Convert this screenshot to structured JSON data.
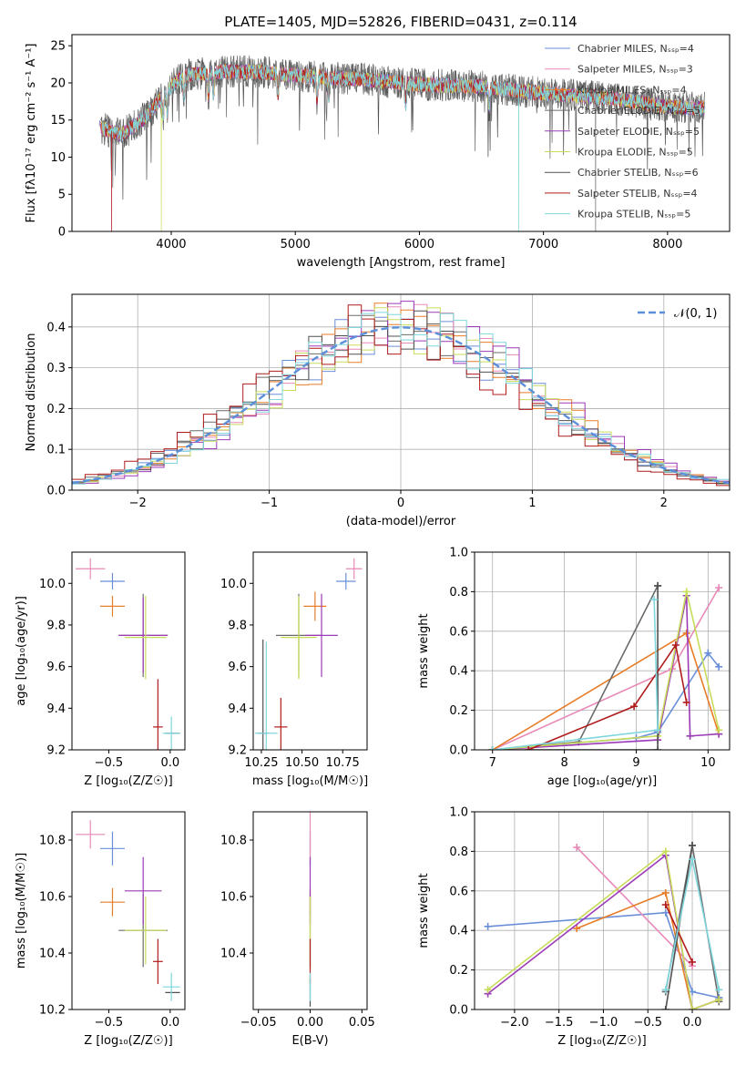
{
  "colors": [
    "#6a8fd8",
    "#e88ab8",
    "#e87d28",
    "#6b6b6b",
    "#9c3bb8",
    "#c8dc5a",
    "#505050",
    "#b01c1c",
    "#7fd6dc"
  ],
  "chart_data": [
    {
      "id": "spectrum",
      "type": "line",
      "title": "PLATE=1405, MJD=52826, FIBERID=0431, z=0.114",
      "xlabel": "wavelength [Angstrom, rest frame]",
      "ylabel": "Flux [fλ10⁻¹⁷ erg cm⁻² s⁻¹ A⁻¹]",
      "xlim": [
        3200,
        8500
      ],
      "ylim": [
        0,
        26.5
      ],
      "xticks": [
        4000,
        5000,
        6000,
        7000,
        8000
      ],
      "yticks": [
        0,
        5,
        10,
        15,
        20,
        25
      ],
      "legend_position": "top-right",
      "continuum": {
        "x": [
          3420,
          3600,
          3800,
          4000,
          4100,
          4400,
          4700,
          5000,
          5500,
          6000,
          6500,
          7000,
          7500,
          8000,
          8300
        ],
        "y": [
          14,
          13,
          15.5,
          19.5,
          21,
          21.5,
          21.5,
          21,
          20.5,
          19.8,
          19.5,
          18.6,
          18,
          16.8,
          16.6
        ]
      },
      "series": [
        {
          "name": "Chabrier MILES, Nₛₛₚ=4"
        },
        {
          "name": "Salpeter MILES, Nₛₛₚ=3"
        },
        {
          "name": "Kroupa MILES, Nₛₛₚ=4"
        },
        {
          "name": "Chabrier ELODIE, Nₛₛₚ=5"
        },
        {
          "name": "Salpeter ELODIE, Nₛₛₚ=5"
        },
        {
          "name": "Kroupa ELODIE, Nₛₛₚ=5"
        },
        {
          "name": "Chabrier STELIB, Nₛₛₚ=6"
        },
        {
          "name": "Salpeter STELIB, Nₛₛₚ=4"
        },
        {
          "name": "Kroupa STELIB, Nₛₛₚ=5"
        }
      ]
    },
    {
      "id": "residuals",
      "type": "line",
      "xlabel": "(data-model)/error",
      "ylabel": "Normed distribution",
      "xlim": [
        -2.5,
        2.5
      ],
      "ylim": [
        0,
        0.48
      ],
      "xticks": [
        -2,
        -1,
        0,
        1,
        2
      ],
      "yticks": [
        0.0,
        0.1,
        0.2,
        0.3,
        0.4
      ],
      "grid": true,
      "legend_position": "top-right",
      "gaussian": {
        "name": "𝒩(0, 1)",
        "mean": 0,
        "sigma": 1
      }
    },
    {
      "id": "age-vs-z",
      "type": "scatter",
      "xlabel": "Z [log₁₀(Z/Z☉)]",
      "ylabel": "age  [log₁₀(age/yr)]",
      "xlim": [
        -0.8,
        0.12
      ],
      "ylim": [
        9.2,
        10.15
      ],
      "xticks": [
        -0.5,
        0.0
      ],
      "yticks": [
        9.2,
        9.4,
        9.6,
        9.8,
        10.0
      ],
      "points": [
        {
          "x": -0.47,
          "y": 10.01,
          "ex": 0.1,
          "ey": 0.04
        },
        {
          "x": -0.65,
          "y": 10.07,
          "ex": 0.12,
          "ey": 0.05
        },
        {
          "x": -0.47,
          "y": 9.89,
          "ex": 0.1,
          "ey": 0.05
        },
        {
          "x": -0.22,
          "y": 9.75,
          "ex": 0.2,
          "ey": 0.2
        },
        {
          "x": -0.22,
          "y": 9.75,
          "ex": 0.2,
          "ey": 0.18
        },
        {
          "x": -0.2,
          "y": 9.74,
          "ex": 0.17,
          "ey": 0.2
        },
        {
          "x": 0.02,
          "y": 9.28,
          "ex": 0.06,
          "ey": 0.0
        },
        {
          "x": -0.1,
          "y": 9.31,
          "ex": 0.04,
          "ey": 0.23
        },
        {
          "x": 0.01,
          "y": 9.28,
          "ex": 0.07,
          "ey": 0.08
        }
      ]
    },
    {
      "id": "age-vs-mass",
      "type": "scatter",
      "xlabel": "mass [log₁₀(M/M☉)]",
      "ylabel": "",
      "xlim": [
        10.2,
        10.9
      ],
      "ylim": [
        9.2,
        10.15
      ],
      "xticks": [
        10.25,
        10.5,
        10.75
      ],
      "yticks": [
        9.2,
        9.4,
        9.6,
        9.8,
        10.0
      ],
      "points": [
        {
          "x": 10.77,
          "y": 10.01,
          "ex": 0.06,
          "ey": 0.04
        },
        {
          "x": 10.82,
          "y": 10.07,
          "ex": 0.05,
          "ey": 0.05
        },
        {
          "x": 10.58,
          "y": 9.89,
          "ex": 0.07,
          "ey": 0.07
        },
        {
          "x": 10.48,
          "y": 9.75,
          "ex": 0.14,
          "ey": 0.2
        },
        {
          "x": 10.62,
          "y": 9.75,
          "ex": 0.1,
          "ey": 0.2
        },
        {
          "x": 10.48,
          "y": 9.74,
          "ex": 0.11,
          "ey": 0.2
        },
        {
          "x": 10.26,
          "y": 9.28,
          "ex": 0.03,
          "ey": 0.45
        },
        {
          "x": 10.37,
          "y": 9.31,
          "ex": 0.04,
          "ey": 0.14
        },
        {
          "x": 10.28,
          "y": 9.28,
          "ex": 0.07,
          "ey": 0.44
        }
      ]
    },
    {
      "id": "weight-vs-age",
      "type": "line",
      "xlabel": "age  [log₁₀(age/yr)]",
      "ylabel": "mass weight",
      "xlim": [
        6.75,
        10.3
      ],
      "ylim": [
        0,
        1.0
      ],
      "xticks": [
        7,
        8,
        9,
        10
      ],
      "yticks": [
        0.0,
        0.2,
        0.4,
        0.6,
        0.8,
        1.0
      ],
      "grid": true,
      "series": [
        {
          "x": [
            7.0,
            9.0,
            9.3,
            10.0,
            10.15
          ],
          "y": [
            0.0,
            0.06,
            0.09,
            0.49,
            0.42
          ]
        },
        {
          "x": [
            7.0,
            9.5,
            10.15
          ],
          "y": [
            0.0,
            0.41,
            0.82
          ]
        },
        {
          "x": [
            7.0,
            9.7,
            10.15
          ],
          "y": [
            0.0,
            0.59,
            0.08
          ]
        },
        {
          "x": [
            7.0,
            8.2,
            9.3
          ],
          "y": [
            0.0,
            0.04,
            0.83
          ]
        },
        {
          "x": [
            7.0,
            9.3,
            9.7,
            9.75,
            10.15
          ],
          "y": [
            0.0,
            0.05,
            0.78,
            0.07,
            0.08
          ]
        },
        {
          "x": [
            7.0,
            9.3,
            9.7,
            10.15
          ],
          "y": [
            0.0,
            0.07,
            0.8,
            0.1
          ]
        },
        {
          "x": [
            7.0,
            9.3,
            9.3
          ],
          "y": [
            0.0,
            0.0,
            0.83
          ]
        },
        {
          "x": [
            7.5,
            8.97,
            9.55,
            9.7
          ],
          "y": [
            0.0,
            0.22,
            0.53,
            0.24
          ]
        },
        {
          "x": [
            7.0,
            9.3,
            9.25
          ],
          "y": [
            0.0,
            0.1,
            0.76
          ]
        }
      ]
    },
    {
      "id": "mass-vs-z",
      "type": "scatter",
      "xlabel": "Z [log₁₀(Z/Z☉)]",
      "ylabel": "mass [log₁₀(M/M☉)]",
      "xlim": [
        -0.8,
        0.12
      ],
      "ylim": [
        10.2,
        10.9
      ],
      "xticks": [
        -0.5,
        0.0
      ],
      "yticks": [
        10.2,
        10.4,
        10.6,
        10.8
      ],
      "points": [
        {
          "x": -0.47,
          "y": 10.77,
          "ex": 0.1,
          "ey": 0.06
        },
        {
          "x": -0.65,
          "y": 10.82,
          "ex": 0.12,
          "ey": 0.05
        },
        {
          "x": -0.47,
          "y": 10.58,
          "ex": 0.1,
          "ey": 0.05
        },
        {
          "x": -0.22,
          "y": 10.48,
          "ex": 0.2,
          "ey": 0.13
        },
        {
          "x": -0.22,
          "y": 10.62,
          "ex": 0.15,
          "ey": 0.12
        },
        {
          "x": -0.2,
          "y": 10.48,
          "ex": 0.17,
          "ey": 0.12
        },
        {
          "x": 0.02,
          "y": 10.26,
          "ex": 0.06,
          "ey": 0.0
        },
        {
          "x": -0.1,
          "y": 10.37,
          "ex": 0.04,
          "ey": 0.08
        },
        {
          "x": 0.01,
          "y": 10.28,
          "ex": 0.07,
          "ey": 0.05
        }
      ]
    },
    {
      "id": "mass-vs-ebv",
      "type": "scatter",
      "xlabel": "E(B-V)",
      "ylabel": "",
      "xlim": [
        -0.055,
        0.055
      ],
      "ylim": [
        10.2,
        10.9
      ],
      "xticks": [
        -0.05,
        0.0,
        0.05
      ],
      "yticks": [
        10.4,
        10.6,
        10.8
      ],
      "points": [
        {
          "x": 0.0,
          "y": 10.77,
          "ex": 0.0,
          "ey": 0.06
        },
        {
          "x": 0.0,
          "y": 10.82,
          "ex": 0.0,
          "ey": 0.08
        },
        {
          "x": 0.0,
          "y": 10.58,
          "ex": 0.0,
          "ey": 0.05
        },
        {
          "x": 0.0,
          "y": 10.48,
          "ex": 0.0,
          "ey": 0.13
        },
        {
          "x": 0.0,
          "y": 10.62,
          "ex": 0.0,
          "ey": 0.12
        },
        {
          "x": 0.0,
          "y": 10.48,
          "ex": 0.0,
          "ey": 0.12
        },
        {
          "x": 0.0,
          "y": 10.26,
          "ex": 0.0,
          "ey": 0.05
        },
        {
          "x": 0.0,
          "y": 10.37,
          "ex": 0.0,
          "ey": 0.08
        },
        {
          "x": 0.0,
          "y": 10.28,
          "ex": 0.0,
          "ey": 0.05
        }
      ]
    },
    {
      "id": "weight-vs-z",
      "type": "line",
      "xlabel": "Z [log₁₀(Z/Z☉)]",
      "ylabel": "mass weight",
      "xlim": [
        -2.45,
        0.42
      ],
      "ylim": [
        0,
        1.0
      ],
      "xticks": [
        -2.0,
        -1.5,
        -1.0,
        -0.5,
        0.0
      ],
      "yticks": [
        0.0,
        0.2,
        0.4,
        0.6,
        0.8,
        1.0
      ],
      "grid": true,
      "series": [
        {
          "x": [
            -2.3,
            -0.3,
            0.0,
            0.3
          ],
          "y": [
            0.42,
            0.49,
            0.09,
            0.06
          ]
        },
        {
          "x": [
            -1.3,
            0.0
          ],
          "y": [
            0.82,
            0.22
          ]
        },
        {
          "x": [
            -1.3,
            -0.3,
            0.0,
            0.3
          ],
          "y": [
            0.41,
            0.59,
            0.0,
            0.05
          ]
        },
        {
          "x": [
            -0.3,
            0.0,
            0.3
          ],
          "y": [
            0.09,
            0.83,
            0.04
          ]
        },
        {
          "x": [
            -2.3,
            -0.3,
            0.0,
            0.3
          ],
          "y": [
            0.08,
            0.78,
            0.0,
            0.05
          ]
        },
        {
          "x": [
            -2.3,
            -0.3,
            0.0,
            0.3
          ],
          "y": [
            0.1,
            0.8,
            0.0,
            0.05
          ]
        },
        {
          "x": [
            -0.3,
            0.0
          ],
          "y": [
            0.0,
            0.83
          ]
        },
        {
          "x": [
            -0.3,
            0.0
          ],
          "y": [
            0.53,
            0.24
          ]
        },
        {
          "x": [
            -0.3,
            0.0,
            0.3
          ],
          "y": [
            0.1,
            0.76,
            0.1
          ]
        }
      ]
    }
  ]
}
